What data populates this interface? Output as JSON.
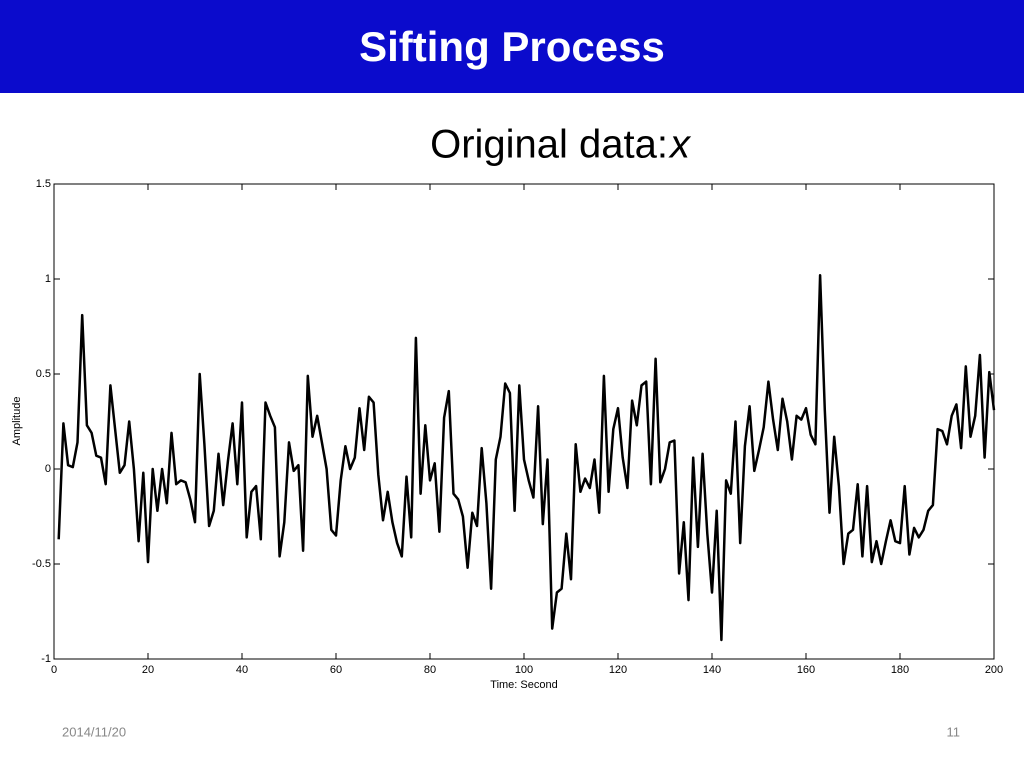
{
  "header": {
    "title": "Sifting Process"
  },
  "chart_data": {
    "type": "line",
    "title": "Original data:",
    "title_variable": "x",
    "x_label": "Time: Second",
    "y_label": "Amplitude",
    "color": "#000000",
    "xlim": [
      0,
      200
    ],
    "ylim": [
      -1,
      1.5
    ],
    "xticks": [
      0,
      20,
      40,
      60,
      80,
      100,
      120,
      140,
      160,
      180,
      200
    ],
    "yticks": [
      -1,
      -0.5,
      0,
      0.5,
      1,
      1.5
    ],
    "x": [
      1,
      2,
      3,
      4,
      5,
      6,
      7,
      8,
      9,
      10,
      11,
      12,
      13,
      14,
      15,
      16,
      17,
      18,
      19,
      20,
      21,
      22,
      23,
      24,
      25,
      26,
      27,
      28,
      29,
      30,
      31,
      32,
      33,
      34,
      35,
      36,
      37,
      38,
      39,
      40,
      41,
      42,
      43,
      44,
      45,
      46,
      47,
      48,
      49,
      50,
      51,
      52,
      53,
      54,
      55,
      56,
      57,
      58,
      59,
      60,
      61,
      62,
      63,
      64,
      65,
      66,
      67,
      68,
      69,
      70,
      71,
      72,
      73,
      74,
      75,
      76,
      77,
      78,
      79,
      80,
      81,
      82,
      83,
      84,
      85,
      86,
      87,
      88,
      89,
      90,
      91,
      92,
      93,
      94,
      95,
      96,
      97,
      98,
      99,
      100,
      101,
      102,
      103,
      104,
      105,
      106,
      107,
      108,
      109,
      110,
      111,
      112,
      113,
      114,
      115,
      116,
      117,
      118,
      119,
      120,
      121,
      122,
      123,
      124,
      125,
      126,
      127,
      128,
      129,
      130,
      131,
      132,
      133,
      134,
      135,
      136,
      137,
      138,
      139,
      140,
      141,
      142,
      143,
      144,
      145,
      146,
      147,
      148,
      149,
      150,
      151,
      152,
      153,
      154,
      155,
      156,
      157,
      158,
      159,
      160,
      161,
      162,
      163,
      164,
      165,
      166,
      167,
      168,
      169,
      170,
      171,
      172,
      173,
      174,
      175,
      176,
      177,
      178,
      179,
      180,
      181,
      182,
      183,
      184,
      185,
      186,
      187,
      188,
      189,
      190,
      191,
      192,
      193,
      194,
      195,
      196,
      197,
      198,
      199,
      200
    ],
    "values": [
      -0.37,
      0.24,
      0.02,
      0.01,
      0.14,
      0.81,
      0.23,
      0.19,
      0.07,
      0.06,
      -0.08,
      0.44,
      0.21,
      -0.02,
      0.02,
      0.25,
      0,
      -0.38,
      -0.02,
      -0.49,
      0,
      -0.22,
      0,
      -0.18,
      0.19,
      -0.08,
      -0.06,
      -0.07,
      -0.16,
      -0.28,
      0.5,
      0.13,
      -0.3,
      -0.22,
      0.08,
      -0.19,
      0.04,
      0.24,
      -0.08,
      0.35,
      -0.36,
      -0.12,
      -0.09,
      -0.37,
      0.35,
      0.28,
      0.22,
      -0.46,
      -0.28,
      0.14,
      -0.01,
      0.02,
      -0.43,
      0.49,
      0.17,
      0.28,
      0.14,
      0,
      -0.32,
      -0.35,
      -0.06,
      0.12,
      0,
      0.06,
      0.32,
      0.1,
      0.38,
      0.35,
      -0.03,
      -0.27,
      -0.12,
      -0.28,
      -0.39,
      -0.46,
      -0.04,
      -0.36,
      0.69,
      -0.13,
      0.23,
      -0.06,
      0.03,
      -0.33,
      0.27,
      0.41,
      -0.13,
      -0.16,
      -0.25,
      -0.52,
      -0.23,
      -0.3,
      0.11,
      -0.18,
      -0.63,
      0.05,
      0.17,
      0.45,
      0.4,
      -0.22,
      0.44,
      0.05,
      -0.06,
      -0.15,
      0.33,
      -0.29,
      0.05,
      -0.84,
      -0.65,
      -0.63,
      -0.34,
      -0.58,
      0.13,
      -0.12,
      -0.05,
      -0.1,
      0.05,
      -0.23,
      0.49,
      -0.12,
      0.21,
      0.32,
      0.06,
      -0.1,
      0.36,
      0.23,
      0.44,
      0.46,
      -0.08,
      0.58,
      -0.07,
      0,
      0.14,
      0.15,
      -0.55,
      -0.28,
      -0.69,
      0.06,
      -0.41,
      0.08,
      -0.34,
      -0.65,
      -0.22,
      -0.9,
      -0.06,
      -0.13,
      0.25,
      -0.39,
      0.12,
      0.33,
      -0.01,
      0.1,
      0.22,
      0.46,
      0.26,
      0.1,
      0.37,
      0.25,
      0.05,
      0.28,
      0.26,
      0.32,
      0.18,
      0.13,
      1.02,
      0.31,
      -0.23,
      0.17,
      -0.09,
      -0.5,
      -0.34,
      -0.32,
      -0.08,
      -0.46,
      -0.09,
      -0.49,
      -0.38,
      -0.5,
      -0.38,
      -0.27,
      -0.38,
      -0.39,
      -0.09,
      -0.45,
      -0.31,
      -0.36,
      -0.32,
      -0.22,
      -0.19,
      0.21,
      0.2,
      0.13,
      0.28,
      0.34,
      0.11,
      0.54,
      0.17,
      0.28,
      0.6,
      0.06,
      0.51,
      0.31
    ]
  },
  "footer": {
    "date": "2014/11/20",
    "page": 11
  }
}
